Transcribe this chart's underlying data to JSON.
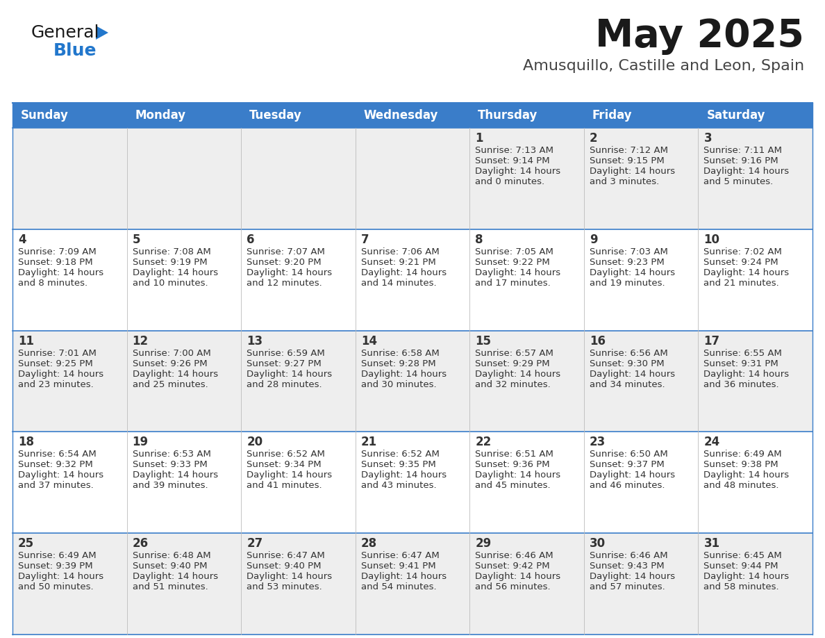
{
  "title": "May 2025",
  "subtitle": "Amusquillo, Castille and Leon, Spain",
  "days_of_week": [
    "Sunday",
    "Monday",
    "Tuesday",
    "Wednesday",
    "Thursday",
    "Friday",
    "Saturday"
  ],
  "header_bg": "#3A7DC9",
  "header_text": "#FFFFFF",
  "row_bg_odd": "#EEEEEE",
  "row_bg_even": "#FFFFFF",
  "separator_color": "#3A7DC9",
  "text_color": "#333333",
  "title_color": "#1a1a1a",
  "subtitle_color": "#444444",
  "calendar_data": [
    [
      {
        "day": "",
        "sunrise": "",
        "sunset": "",
        "daylight_h": "",
        "daylight_m": ""
      },
      {
        "day": "",
        "sunrise": "",
        "sunset": "",
        "daylight_h": "",
        "daylight_m": ""
      },
      {
        "day": "",
        "sunrise": "",
        "sunset": "",
        "daylight_h": "",
        "daylight_m": ""
      },
      {
        "day": "",
        "sunrise": "",
        "sunset": "",
        "daylight_h": "",
        "daylight_m": ""
      },
      {
        "day": "1",
        "sunrise": "7:13 AM",
        "sunset": "9:14 PM",
        "daylight_h": "14 hours",
        "daylight_m": "and 0 minutes."
      },
      {
        "day": "2",
        "sunrise": "7:12 AM",
        "sunset": "9:15 PM",
        "daylight_h": "14 hours",
        "daylight_m": "and 3 minutes."
      },
      {
        "day": "3",
        "sunrise": "7:11 AM",
        "sunset": "9:16 PM",
        "daylight_h": "14 hours",
        "daylight_m": "and 5 minutes."
      }
    ],
    [
      {
        "day": "4",
        "sunrise": "7:09 AM",
        "sunset": "9:18 PM",
        "daylight_h": "14 hours",
        "daylight_m": "and 8 minutes."
      },
      {
        "day": "5",
        "sunrise": "7:08 AM",
        "sunset": "9:19 PM",
        "daylight_h": "14 hours",
        "daylight_m": "and 10 minutes."
      },
      {
        "day": "6",
        "sunrise": "7:07 AM",
        "sunset": "9:20 PM",
        "daylight_h": "14 hours",
        "daylight_m": "and 12 minutes."
      },
      {
        "day": "7",
        "sunrise": "7:06 AM",
        "sunset": "9:21 PM",
        "daylight_h": "14 hours",
        "daylight_m": "and 14 minutes."
      },
      {
        "day": "8",
        "sunrise": "7:05 AM",
        "sunset": "9:22 PM",
        "daylight_h": "14 hours",
        "daylight_m": "and 17 minutes."
      },
      {
        "day": "9",
        "sunrise": "7:03 AM",
        "sunset": "9:23 PM",
        "daylight_h": "14 hours",
        "daylight_m": "and 19 minutes."
      },
      {
        "day": "10",
        "sunrise": "7:02 AM",
        "sunset": "9:24 PM",
        "daylight_h": "14 hours",
        "daylight_m": "and 21 minutes."
      }
    ],
    [
      {
        "day": "11",
        "sunrise": "7:01 AM",
        "sunset": "9:25 PM",
        "daylight_h": "14 hours",
        "daylight_m": "and 23 minutes."
      },
      {
        "day": "12",
        "sunrise": "7:00 AM",
        "sunset": "9:26 PM",
        "daylight_h": "14 hours",
        "daylight_m": "and 25 minutes."
      },
      {
        "day": "13",
        "sunrise": "6:59 AM",
        "sunset": "9:27 PM",
        "daylight_h": "14 hours",
        "daylight_m": "and 28 minutes."
      },
      {
        "day": "14",
        "sunrise": "6:58 AM",
        "sunset": "9:28 PM",
        "daylight_h": "14 hours",
        "daylight_m": "and 30 minutes."
      },
      {
        "day": "15",
        "sunrise": "6:57 AM",
        "sunset": "9:29 PM",
        "daylight_h": "14 hours",
        "daylight_m": "and 32 minutes."
      },
      {
        "day": "16",
        "sunrise": "6:56 AM",
        "sunset": "9:30 PM",
        "daylight_h": "14 hours",
        "daylight_m": "and 34 minutes."
      },
      {
        "day": "17",
        "sunrise": "6:55 AM",
        "sunset": "9:31 PM",
        "daylight_h": "14 hours",
        "daylight_m": "and 36 minutes."
      }
    ],
    [
      {
        "day": "18",
        "sunrise": "6:54 AM",
        "sunset": "9:32 PM",
        "daylight_h": "14 hours",
        "daylight_m": "and 37 minutes."
      },
      {
        "day": "19",
        "sunrise": "6:53 AM",
        "sunset": "9:33 PM",
        "daylight_h": "14 hours",
        "daylight_m": "and 39 minutes."
      },
      {
        "day": "20",
        "sunrise": "6:52 AM",
        "sunset": "9:34 PM",
        "daylight_h": "14 hours",
        "daylight_m": "and 41 minutes."
      },
      {
        "day": "21",
        "sunrise": "6:52 AM",
        "sunset": "9:35 PM",
        "daylight_h": "14 hours",
        "daylight_m": "and 43 minutes."
      },
      {
        "day": "22",
        "sunrise": "6:51 AM",
        "sunset": "9:36 PM",
        "daylight_h": "14 hours",
        "daylight_m": "and 45 minutes."
      },
      {
        "day": "23",
        "sunrise": "6:50 AM",
        "sunset": "9:37 PM",
        "daylight_h": "14 hours",
        "daylight_m": "and 46 minutes."
      },
      {
        "day": "24",
        "sunrise": "6:49 AM",
        "sunset": "9:38 PM",
        "daylight_h": "14 hours",
        "daylight_m": "and 48 minutes."
      }
    ],
    [
      {
        "day": "25",
        "sunrise": "6:49 AM",
        "sunset": "9:39 PM",
        "daylight_h": "14 hours",
        "daylight_m": "and 50 minutes."
      },
      {
        "day": "26",
        "sunrise": "6:48 AM",
        "sunset": "9:40 PM",
        "daylight_h": "14 hours",
        "daylight_m": "and 51 minutes."
      },
      {
        "day": "27",
        "sunrise": "6:47 AM",
        "sunset": "9:40 PM",
        "daylight_h": "14 hours",
        "daylight_m": "and 53 minutes."
      },
      {
        "day": "28",
        "sunrise": "6:47 AM",
        "sunset": "9:41 PM",
        "daylight_h": "14 hours",
        "daylight_m": "and 54 minutes."
      },
      {
        "day": "29",
        "sunrise": "6:46 AM",
        "sunset": "9:42 PM",
        "daylight_h": "14 hours",
        "daylight_m": "and 56 minutes."
      },
      {
        "day": "30",
        "sunrise": "6:46 AM",
        "sunset": "9:43 PM",
        "daylight_h": "14 hours",
        "daylight_m": "and 57 minutes."
      },
      {
        "day": "31",
        "sunrise": "6:45 AM",
        "sunset": "9:44 PM",
        "daylight_h": "14 hours",
        "daylight_m": "and 58 minutes."
      }
    ]
  ],
  "logo_color_general": "#1a1a1a",
  "logo_color_blue": "#2277CC",
  "logo_triangle_color": "#2277CC",
  "fig_width": 11.88,
  "fig_height": 9.18,
  "dpi": 100
}
